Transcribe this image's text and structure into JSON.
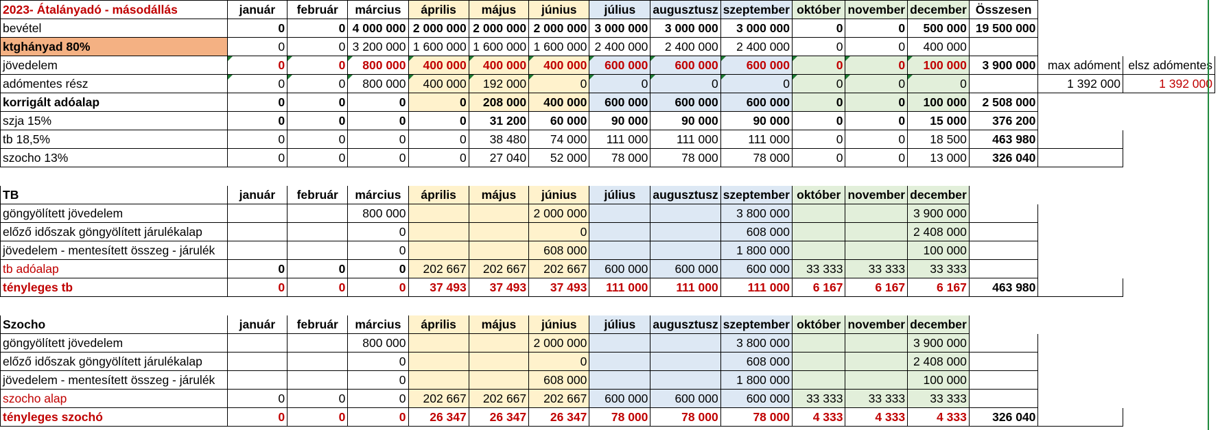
{
  "colors": {
    "red_text": "#c00000",
    "q2_fill": "#fff2cc",
    "q3_fill": "#dde8f4",
    "q4_fill": "#e2efda",
    "cost_fill": "#f4b183"
  },
  "months": [
    "január",
    "február",
    "március",
    "április",
    "május",
    "június",
    "július",
    "augusztusz",
    "szeptember",
    "október",
    "november",
    "december"
  ],
  "summary": {
    "title": "2023- Átalányadó - másodállás",
    "total_header": "Összesen",
    "rows": [
      {
        "label": "bevétel",
        "values": [
          "0",
          "0",
          "4 000 000",
          "2 000 000",
          "2 000 000",
          "2 000 000",
          "3 000 000",
          "3 000 000",
          "3 000 000",
          "0",
          "0",
          "500 000"
        ],
        "total": "19 500 000"
      },
      {
        "label": "ktghányad 80%",
        "values": [
          "0",
          "0",
          "3 200 000",
          "1 600 000",
          "1 600 000",
          "1 600 000",
          "2 400 000",
          "2 400 000",
          "2 400 000",
          "0",
          "0",
          "400 000"
        ],
        "total": ""
      },
      {
        "label": "jövedelem",
        "values": [
          "0",
          "0",
          "800 000",
          "400 000",
          "400 000",
          "400 000",
          "600 000",
          "600 000",
          "600 000",
          "0",
          "0",
          "100 000"
        ],
        "total": "3 900 000",
        "extra": [
          "max adóment",
          "elsz adómentes"
        ]
      },
      {
        "label": "adómentes rész",
        "values": [
          "0",
          "0",
          "800 000",
          "400 000",
          "192 000",
          "0",
          "0",
          "0",
          "0",
          "0",
          "0",
          "0"
        ],
        "total": "",
        "extra": [
          "1 392 000",
          "1 392 000"
        ]
      },
      {
        "label": "korrigált adóalap",
        "values": [
          "0",
          "0",
          "0",
          "0",
          "208 000",
          "400 000",
          "600 000",
          "600 000",
          "600 000",
          "0",
          "0",
          "100 000"
        ],
        "total": "2 508 000"
      },
      {
        "label": "szja 15%",
        "values": [
          "0",
          "0",
          "0",
          "0",
          "31 200",
          "60 000",
          "90 000",
          "90 000",
          "90 000",
          "0",
          "0",
          "15 000"
        ],
        "total": "376 200"
      },
      {
        "label": "tb 18,5%",
        "values": [
          "0",
          "0",
          "0",
          "0",
          "38 480",
          "74 000",
          "111 000",
          "111 000",
          "111 000",
          "0",
          "0",
          "18 500"
        ],
        "total": "463 980"
      },
      {
        "label": "szocho 13%",
        "values": [
          "0",
          "0",
          "0",
          "0",
          "27 040",
          "52 000",
          "78 000",
          "78 000",
          "78 000",
          "0",
          "0",
          "13 000"
        ],
        "total": "326 040"
      }
    ]
  },
  "tb": {
    "title": "TB",
    "rows": [
      {
        "label": "göngyölített jövedelem",
        "values": [
          "",
          "",
          "800 000",
          "",
          "",
          "2 000 000",
          "",
          "",
          "3 800 000",
          "",
          "",
          "3 900 000"
        ],
        "total": ""
      },
      {
        "label": "előző időszak göngyölített járulékalap",
        "values": [
          "",
          "",
          "0",
          "",
          "",
          "0",
          "",
          "",
          "608 000",
          "",
          "",
          "2 408 000"
        ],
        "total": ""
      },
      {
        "label": "jövedelem - mentesített összeg - járulék",
        "values": [
          "",
          "",
          "0",
          "",
          "",
          "608 000",
          "",
          "",
          "1 800 000",
          "",
          "",
          "100 000"
        ],
        "total": ""
      },
      {
        "label": "tb adóalap",
        "values": [
          "0",
          "0",
          "0",
          "202 667",
          "202 667",
          "202 667",
          "600 000",
          "600 000",
          "600 000",
          "33 333",
          "33 333",
          "33 333"
        ],
        "total": ""
      },
      {
        "label": "tényleges tb",
        "values": [
          "0",
          "0",
          "0",
          "37 493",
          "37 493",
          "37 493",
          "111 000",
          "111 000",
          "111 000",
          "6 167",
          "6 167",
          "6 167"
        ],
        "total": "463 980"
      }
    ]
  },
  "szocho": {
    "title": "Szocho",
    "rows": [
      {
        "label": "göngyölített jövedelem",
        "values": [
          "",
          "",
          "800 000",
          "",
          "",
          "2 000 000",
          "",
          "",
          "3 800 000",
          "",
          "",
          "3 900 000"
        ],
        "total": ""
      },
      {
        "label": "előző időszak göngyölített járulékalap",
        "values": [
          "",
          "",
          "0",
          "",
          "",
          "0",
          "",
          "",
          "608 000",
          "",
          "",
          "2 408 000"
        ],
        "total": ""
      },
      {
        "label": "jövedelem - mentesített összeg - járulék",
        "values": [
          "",
          "",
          "0",
          "",
          "",
          "608 000",
          "",
          "",
          "1 800 000",
          "",
          "",
          "100 000"
        ],
        "total": ""
      },
      {
        "label": "szocho alap",
        "values": [
          "0",
          "0",
          "0",
          "202 667",
          "202 667",
          "202 667",
          "600 000",
          "600 000",
          "600 000",
          "33 333",
          "33 333",
          "33 333"
        ],
        "total": ""
      },
      {
        "label": "tényleges szochó",
        "values": [
          "0",
          "0",
          "0",
          "26 347",
          "26 347",
          "26 347",
          "78 000",
          "78 000",
          "78 000",
          "4 333",
          "4 333",
          "4 333"
        ],
        "total": "326 040"
      }
    ]
  }
}
